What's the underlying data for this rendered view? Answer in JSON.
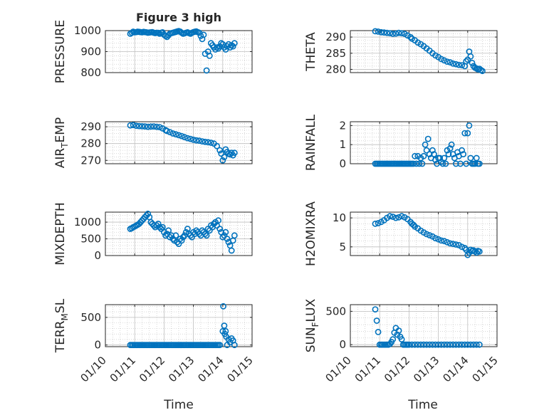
{
  "figure": {
    "title": "Figure 3 high",
    "xlabel": "Time"
  },
  "colors": {
    "marker": "#0072BD",
    "axes": "#262626",
    "grid": "#bfbfbf"
  },
  "chart_data": [
    {
      "type": "scatter",
      "ylabel": "PRESSURE",
      "ylim": [
        800,
        1000
      ],
      "yticks": [
        800,
        900,
        1000
      ],
      "xlim": [
        "01/10",
        "01/15"
      ],
      "show_xticks": false,
      "grid": true,
      "marker": "open-circle",
      "x": [
        0.85,
        0.9,
        0.95,
        1.0,
        1.05,
        1.1,
        1.15,
        1.2,
        1.25,
        1.3,
        1.35,
        1.4,
        1.45,
        1.5,
        1.55,
        1.6,
        1.65,
        1.7,
        1.75,
        1.8,
        1.85,
        1.9,
        1.95,
        2.0,
        2.05,
        2.1,
        2.15,
        2.2,
        2.25,
        2.3,
        2.35,
        2.4,
        2.45,
        2.5,
        2.55,
        2.6,
        2.65,
        2.7,
        2.75,
        2.8,
        2.85,
        2.9,
        2.95,
        3.0,
        3.05,
        3.1,
        3.15,
        3.2,
        3.25,
        3.3,
        3.35,
        3.4,
        3.45,
        3.5,
        3.55,
        3.6,
        3.65,
        3.7,
        3.75,
        3.8,
        3.85,
        3.9,
        3.95,
        4.0,
        4.05,
        4.1,
        4.15,
        4.2,
        4.25,
        4.3,
        4.35,
        4.4
      ],
      "y": [
        985,
        990,
        995,
        992,
        993,
        995,
        994,
        993,
        992,
        994,
        993,
        992,
        990,
        991,
        992,
        993,
        990,
        988,
        990,
        989,
        985,
        990,
        992,
        980,
        975,
        970,
        978,
        985,
        988,
        990,
        992,
        994,
        996,
        998,
        995,
        990,
        985,
        987,
        990,
        992,
        988,
        985,
        990,
        993,
        995,
        996,
        993,
        990,
        975,
        960,
        980,
        890,
        810,
        900,
        880,
        940,
        930,
        920,
        910,
        920,
        915,
        925,
        940,
        935,
        920,
        910,
        925,
        935,
        920,
        930,
        925,
        940
      ]
    },
    {
      "type": "scatter",
      "ylabel": "THETA",
      "ylim": [
        279,
        292
      ],
      "yticks": [
        280,
        285,
        290
      ],
      "xlim": [
        "01/10",
        "01/15"
      ],
      "show_xticks": false,
      "grid": true,
      "marker": "open-circle",
      "x": [
        0.85,
        0.95,
        1.05,
        1.15,
        1.25,
        1.35,
        1.45,
        1.55,
        1.65,
        1.75,
        1.85,
        1.95,
        2.05,
        2.1,
        2.2,
        2.3,
        2.4,
        2.5,
        2.6,
        2.7,
        2.8,
        2.9,
        3.0,
        3.1,
        3.2,
        3.3,
        3.4,
        3.5,
        3.6,
        3.7,
        3.8,
        3.9,
        3.95,
        4.0,
        4.05,
        4.1,
        4.15,
        4.2,
        4.25,
        4.3,
        4.35,
        4.4,
        4.45,
        4.5
      ],
      "y": [
        291.8,
        291.7,
        291.5,
        291.4,
        291.3,
        291.2,
        291.0,
        291.1,
        291.3,
        291.2,
        291.0,
        290.5,
        290.0,
        289.5,
        289.0,
        288.3,
        287.8,
        287.2,
        286.5,
        285.8,
        285.0,
        284.3,
        283.8,
        283.2,
        282.8,
        282.4,
        282.2,
        281.8,
        281.6,
        281.4,
        281.3,
        281.0,
        282.5,
        283.0,
        285.5,
        284.0,
        282.0,
        281.0,
        280.5,
        280.3,
        280.0,
        280.2,
        279.8,
        279.5
      ]
    },
    {
      "type": "scatter",
      "ylabel": "AIR_TEMP",
      "ylim": [
        268,
        293
      ],
      "yticks": [
        270,
        280,
        290
      ],
      "xlim": [
        "01/10",
        "01/15"
      ],
      "show_xticks": false,
      "grid": true,
      "marker": "open-circle",
      "x": [
        0.85,
        0.95,
        1.05,
        1.15,
        1.25,
        1.35,
        1.45,
        1.55,
        1.65,
        1.75,
        1.85,
        1.95,
        2.05,
        2.1,
        2.2,
        2.3,
        2.4,
        2.5,
        2.6,
        2.7,
        2.8,
        2.9,
        3.0,
        3.1,
        3.2,
        3.3,
        3.4,
        3.5,
        3.6,
        3.7,
        3.8,
        3.9,
        3.95,
        4.0,
        4.05,
        4.1,
        4.15,
        4.2,
        4.25,
        4.3,
        4.35,
        4.4
      ],
      "y": [
        290.8,
        291.0,
        290.6,
        290.4,
        290.3,
        290.2,
        290.0,
        290.1,
        290.2,
        290.0,
        289.8,
        289.0,
        288.0,
        287.5,
        286.8,
        286.0,
        285.5,
        285.0,
        284.5,
        283.8,
        283.2,
        282.8,
        282.3,
        281.9,
        281.7,
        281.3,
        281.0,
        280.8,
        280.5,
        280.0,
        278.5,
        276.0,
        274.0,
        270.0,
        272.0,
        276.5,
        275.0,
        274.0,
        273.5,
        274.5,
        273.0,
        274.5
      ]
    },
    {
      "type": "scatter",
      "ylabel": "RAINFALL",
      "ylim": [
        0,
        2.2
      ],
      "yticks": [
        0,
        1,
        2
      ],
      "xlim": [
        "01/10",
        "01/15"
      ],
      "show_xticks": false,
      "grid": true,
      "marker": "open-circle",
      "x": [
        0.85,
        0.9,
        0.95,
        1.0,
        1.05,
        1.1,
        1.15,
        1.2,
        1.25,
        1.3,
        1.35,
        1.4,
        1.45,
        1.5,
        1.55,
        1.6,
        1.65,
        1.7,
        1.75,
        1.8,
        1.85,
        1.9,
        1.95,
        2.0,
        2.05,
        2.1,
        2.15,
        2.2,
        2.25,
        2.3,
        2.35,
        2.4,
        2.45,
        2.5,
        2.55,
        2.6,
        2.65,
        2.7,
        2.75,
        2.8,
        2.85,
        2.9,
        2.95,
        3.0,
        3.05,
        3.1,
        3.15,
        3.2,
        3.25,
        3.3,
        3.35,
        3.4,
        3.45,
        3.5,
        3.55,
        3.6,
        3.65,
        3.7,
        3.75,
        3.8,
        3.85,
        3.9,
        3.95,
        4.0,
        4.05,
        4.1,
        4.15,
        4.2,
        4.25,
        4.3,
        4.35,
        4.4
      ],
      "y": [
        0,
        0,
        0,
        0,
        0,
        0,
        0,
        0,
        0,
        0,
        0,
        0,
        0,
        0,
        0,
        0,
        0,
        0,
        0,
        0,
        0,
        0,
        0,
        0,
        0,
        0,
        0,
        0.4,
        0,
        0.4,
        0,
        0.3,
        0,
        0.4,
        1.0,
        0.7,
        1.3,
        0.5,
        0.3,
        0.7,
        0.5,
        0.2,
        0,
        0.3,
        0.3,
        0.1,
        0,
        0.3,
        0,
        0.7,
        0.5,
        0.8,
        1.0,
        0.5,
        0.3,
        0,
        0.6,
        0.4,
        0,
        0.7,
        0.5,
        1.6,
        0,
        1.6,
        2.0,
        0.3,
        0,
        0,
        0,
        0.3,
        0,
        0
      ]
    },
    {
      "type": "scatter",
      "ylabel": "MIXDEPTH",
      "ylim": [
        0,
        1300
      ],
      "yticks": [
        0,
        500,
        1000
      ],
      "xlim": [
        "01/10",
        "01/15"
      ],
      "show_xticks": false,
      "grid": true,
      "marker": "open-circle",
      "x": [
        0.85,
        0.9,
        0.95,
        1.0,
        1.05,
        1.1,
        1.15,
        1.2,
        1.25,
        1.3,
        1.35,
        1.4,
        1.45,
        1.5,
        1.55,
        1.6,
        1.65,
        1.7,
        1.75,
        1.8,
        1.85,
        1.9,
        1.95,
        2.0,
        2.05,
        2.1,
        2.15,
        2.2,
        2.25,
        2.3,
        2.35,
        2.4,
        2.45,
        2.5,
        2.55,
        2.6,
        2.65,
        2.7,
        2.75,
        2.8,
        2.85,
        2.9,
        2.95,
        3.0,
        3.05,
        3.1,
        3.15,
        3.2,
        3.25,
        3.3,
        3.35,
        3.4,
        3.45,
        3.5,
        3.55,
        3.6,
        3.65,
        3.7,
        3.75,
        3.8,
        3.85,
        3.9,
        3.95,
        4.0,
        4.05,
        4.1,
        4.15,
        4.2,
        4.25,
        4.3,
        4.35,
        4.4
      ],
      "y": [
        800,
        820,
        850,
        870,
        900,
        920,
        950,
        1000,
        1050,
        1100,
        1150,
        1200,
        1250,
        1150,
        1000,
        950,
        900,
        850,
        900,
        950,
        850,
        800,
        850,
        700,
        600,
        650,
        750,
        550,
        600,
        500,
        450,
        600,
        400,
        350,
        500,
        450,
        550,
        600,
        700,
        800,
        650,
        600,
        550,
        700,
        650,
        750,
        700,
        650,
        600,
        750,
        700,
        650,
        600,
        800,
        750,
        900,
        850,
        950,
        1000,
        900,
        1050,
        800,
        700,
        550,
        600,
        700,
        500,
        400,
        300,
        150,
        450,
        600
      ]
    },
    {
      "type": "scatter",
      "ylabel": "H2OMIXRA",
      "ylim": [
        3.5,
        11
      ],
      "yticks": [
        5,
        10
      ],
      "xlim": [
        "01/10",
        "01/15"
      ],
      "show_xticks": false,
      "grid": true,
      "marker": "open-circle",
      "x": [
        0.85,
        0.95,
        1.05,
        1.15,
        1.25,
        1.35,
        1.45,
        1.55,
        1.65,
        1.75,
        1.85,
        1.95,
        2.05,
        2.1,
        2.15,
        2.2,
        2.3,
        2.4,
        2.5,
        2.6,
        2.7,
        2.8,
        2.9,
        3.0,
        3.1,
        3.2,
        3.3,
        3.4,
        3.5,
        3.6,
        3.7,
        3.8,
        3.9,
        3.95,
        4.0,
        4.05,
        4.1,
        4.15,
        4.2,
        4.25,
        4.3,
        4.35,
        4.4
      ],
      "y": [
        9.0,
        9.1,
        9.3,
        9.6,
        10.0,
        10.3,
        10.2,
        10.0,
        10.1,
        10.3,
        10.1,
        9.8,
        9.3,
        9.0,
        8.8,
        8.5,
        8.2,
        7.8,
        7.5,
        7.2,
        7.0,
        6.8,
        6.5,
        6.3,
        6.1,
        6.0,
        5.8,
        5.6,
        5.5,
        5.4,
        5.3,
        5.0,
        4.8,
        4.5,
        3.6,
        4.0,
        4.5,
        4.3,
        4.4,
        4.2,
        4.0,
        4.3,
        4.2
      ]
    },
    {
      "type": "scatter",
      "ylabel": "TERR_MSL",
      "ylim": [
        -30,
        730
      ],
      "yticks": [
        0,
        500
      ],
      "xlim": [
        "01/10",
        "01/15"
      ],
      "xticks": [
        "01/10",
        "01/11",
        "01/12",
        "01/13",
        "01/14",
        "01/15"
      ],
      "show_xticks": true,
      "grid": true,
      "marker": "open-circle",
      "x": [
        0.85,
        0.9,
        0.95,
        1.0,
        1.05,
        1.1,
        1.15,
        1.2,
        1.25,
        1.3,
        1.35,
        1.4,
        1.45,
        1.5,
        1.55,
        1.6,
        1.65,
        1.7,
        1.75,
        1.8,
        1.85,
        1.9,
        1.95,
        2.0,
        2.05,
        2.1,
        2.15,
        2.2,
        2.25,
        2.3,
        2.35,
        2.4,
        2.45,
        2.5,
        2.55,
        2.6,
        2.65,
        2.7,
        2.75,
        2.8,
        2.85,
        2.9,
        2.95,
        3.0,
        3.05,
        3.1,
        3.15,
        3.2,
        3.25,
        3.3,
        3.35,
        3.4,
        3.45,
        3.5,
        3.55,
        3.6,
        3.65,
        3.7,
        3.75,
        3.8,
        3.85,
        3.9,
        4.0,
        4.02,
        4.05,
        4.07,
        4.1,
        4.12,
        4.15,
        4.2,
        4.25,
        4.3,
        4.35,
        4.4
      ],
      "y": [
        0,
        0,
        0,
        0,
        0,
        0,
        0,
        0,
        0,
        0,
        0,
        0,
        0,
        0,
        0,
        0,
        0,
        0,
        0,
        0,
        0,
        0,
        0,
        0,
        0,
        0,
        0,
        0,
        0,
        0,
        0,
        0,
        0,
        0,
        0,
        0,
        0,
        0,
        0,
        0,
        0,
        0,
        0,
        0,
        0,
        0,
        0,
        0,
        0,
        0,
        0,
        0,
        0,
        0,
        0,
        0,
        0,
        0,
        0,
        0,
        0,
        0,
        250,
        700,
        350,
        200,
        250,
        150,
        0,
        100,
        50,
        120,
        80,
        0
      ]
    },
    {
      "type": "scatter",
      "ylabel": "SUN_FLUX",
      "ylim": [
        -30,
        600
      ],
      "yticks": [
        0,
        500
      ],
      "xlim": [
        "01/10",
        "01/15"
      ],
      "xticks": [
        "01/10",
        "01/11",
        "01/12",
        "01/13",
        "01/14",
        "01/15"
      ],
      "show_xticks": true,
      "grid": true,
      "marker": "open-circle",
      "x": [
        0.85,
        0.9,
        0.95,
        1.0,
        1.05,
        1.1,
        1.15,
        1.2,
        1.25,
        1.3,
        1.35,
        1.4,
        1.45,
        1.5,
        1.55,
        1.6,
        1.65,
        1.7,
        1.75,
        1.8,
        1.85,
        1.9,
        1.95,
        2.0,
        2.1,
        2.2,
        2.3,
        2.4,
        2.5,
        2.6,
        2.7,
        2.8,
        2.9,
        3.0,
        3.1,
        3.2,
        3.3,
        3.4,
        3.5,
        3.6,
        3.7,
        3.8,
        3.9,
        4.0,
        4.1,
        4.2,
        4.3,
        4.4
      ],
      "y": [
        530,
        360,
        190,
        0,
        0,
        0,
        0,
        0,
        0,
        0,
        10,
        40,
        80,
        180,
        250,
        150,
        210,
        120,
        80,
        0,
        0,
        0,
        0,
        0,
        0,
        0,
        0,
        0,
        0,
        0,
        0,
        0,
        0,
        0,
        0,
        0,
        0,
        0,
        0,
        0,
        0,
        0,
        0,
        0,
        0,
        0,
        0,
        0
      ]
    }
  ]
}
